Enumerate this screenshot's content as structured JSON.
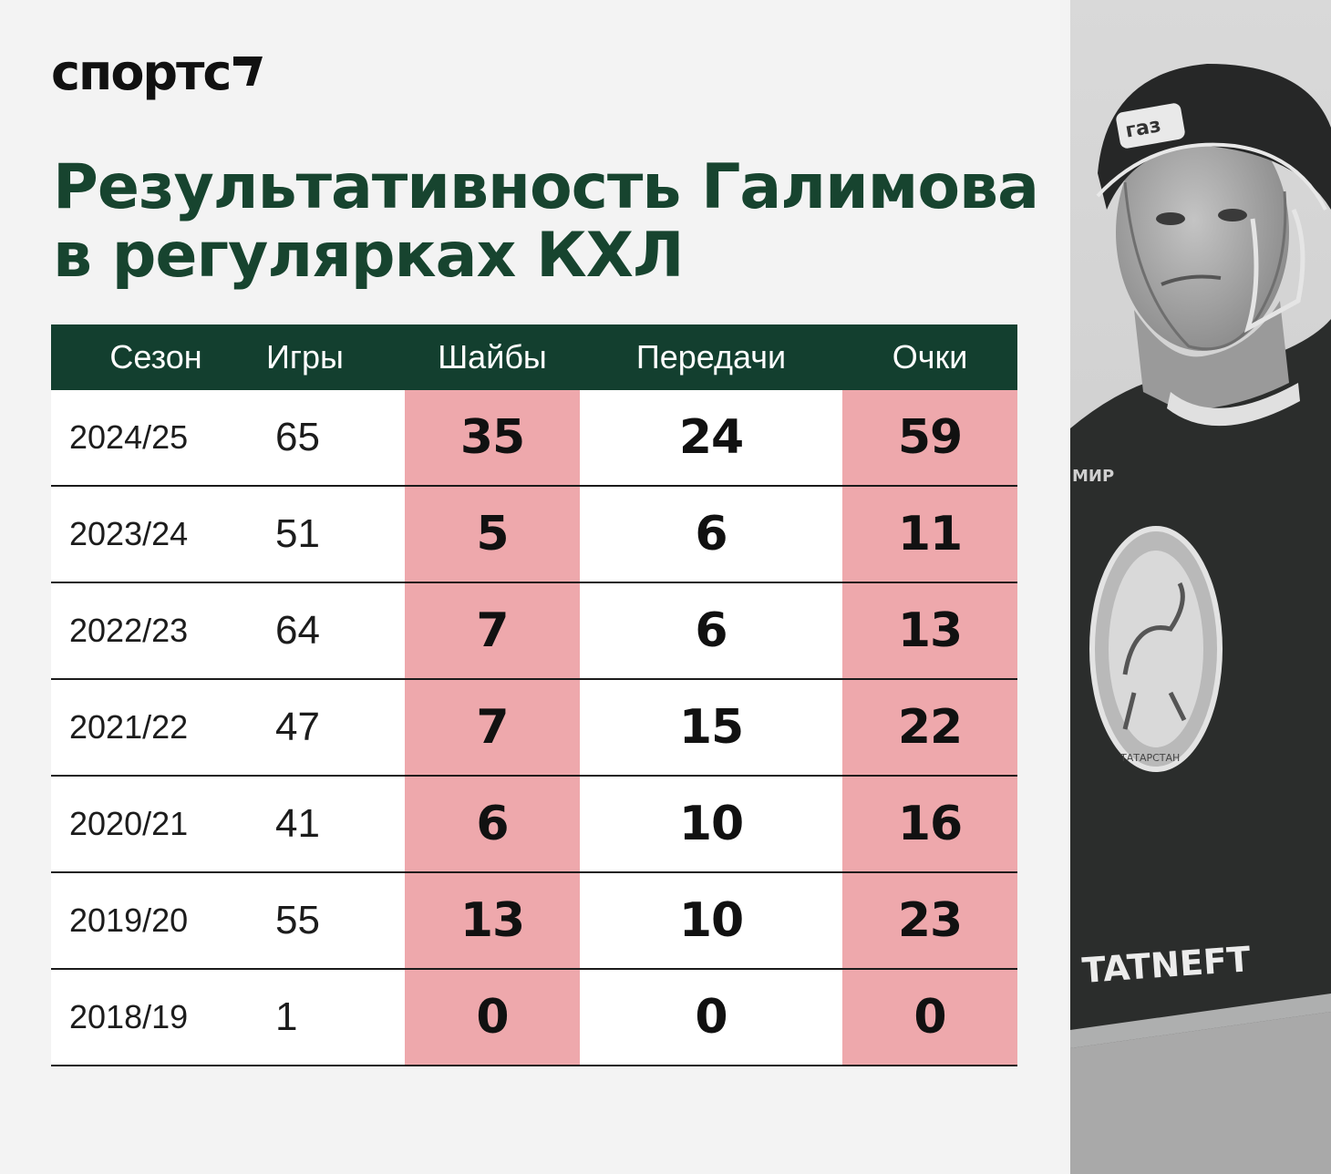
{
  "brand": {
    "logo_text": "спортс"
  },
  "title": {
    "line1": "Результативность Галимова",
    "line2": "в регулярках КХЛ"
  },
  "chart_data": {
    "type": "table",
    "columns": [
      "Сезон",
      "Игры",
      "Шайбы",
      "Передачи",
      "Очки"
    ],
    "rows": [
      [
        "2024/25",
        "65",
        "35",
        "24",
        "59"
      ],
      [
        "2023/24",
        "51",
        "5",
        "6",
        "11"
      ],
      [
        "2022/23",
        "64",
        "7",
        "6",
        "13"
      ],
      [
        "2021/22",
        "47",
        "7",
        "15",
        "22"
      ],
      [
        "2020/21",
        "41",
        "6",
        "10",
        "16"
      ],
      [
        "2019/20",
        "55",
        "13",
        "10",
        "23"
      ],
      [
        "2018/19",
        "1",
        "0",
        "0",
        "0"
      ]
    ],
    "highlight_color": "#eea8ac",
    "header_color": "#133f2f"
  },
  "photo": {
    "jersey_text": "TATNEFT",
    "helmet_text": "газ",
    "sleeve_text": "МИР",
    "emblem_text": "ТАТАРСТАН"
  },
  "colors": {
    "title": "#17442f",
    "background": "#f3f3f3"
  }
}
